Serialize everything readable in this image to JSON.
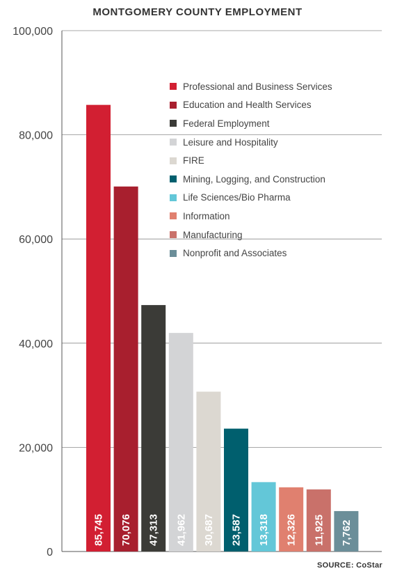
{
  "chart_data": {
    "type": "bar",
    "title": "MONTGOMERY COUNTY EMPLOYMENT",
    "source": "SOURCE: CoStar",
    "categories": [
      "Professional and Business Services",
      "Education and Health Services",
      "Federal Employment",
      "Leisure and Hospitality",
      "FIRE",
      "Mining, Logging, and Construction",
      "Life Sciences/Bio Pharma",
      "Information",
      "Manufacturing",
      "Nonprofit and Associates"
    ],
    "values": [
      85745,
      70076,
      47313,
      41962,
      30687,
      23587,
      13318,
      12326,
      11925,
      7762
    ],
    "value_labels": [
      "85,745",
      "70,076",
      "47,313",
      "41,962",
      "30,687",
      "23,587",
      "13,318",
      "12,326",
      "11,925",
      "7,762"
    ],
    "colors": [
      "#d21f32",
      "#a81f2e",
      "#3b3b37",
      "#d3d4d6",
      "#dcd8d1",
      "#005f6e",
      "#63c7d8",
      "#e0806f",
      "#c9716a",
      "#6b8e99"
    ],
    "ylim": [
      0,
      100000
    ],
    "yticks": [
      0,
      20000,
      40000,
      60000,
      80000,
      100000
    ],
    "ytick_labels": [
      "0",
      "20,000",
      "40,000",
      "60,000",
      "80,000",
      "100,000"
    ],
    "grid": true,
    "legend_position": "top-right",
    "xlabel": "",
    "ylabel": ""
  }
}
